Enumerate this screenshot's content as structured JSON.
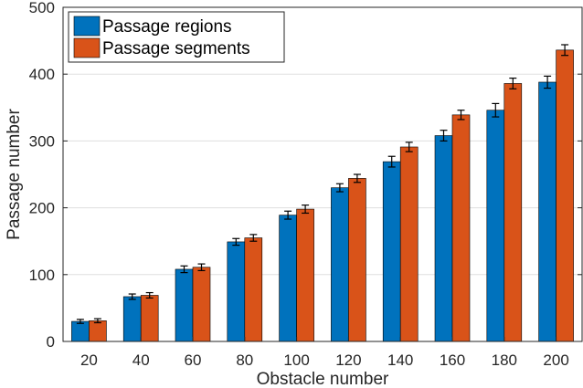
{
  "chart_data": {
    "type": "bar",
    "xlabel": "Obstacle number",
    "ylabel": "Passage number",
    "categories": [
      "20",
      "40",
      "60",
      "80",
      "100",
      "120",
      "140",
      "160",
      "180",
      "200"
    ],
    "ylim": [
      0,
      500
    ],
    "yticks": [
      "0",
      "100",
      "200",
      "300",
      "400",
      "500"
    ],
    "grid": true,
    "legend_position": "top-left",
    "series": [
      {
        "name": "Passage regions",
        "color": "#0072BD",
        "values": [
          30,
          67,
          108,
          149,
          189,
          230,
          269,
          308,
          346,
          388
        ],
        "errors": [
          3,
          4,
          5,
          5,
          6,
          6,
          8,
          8,
          10,
          9
        ]
      },
      {
        "name": "Passage segments",
        "color": "#D95319",
        "values": [
          31,
          69,
          111,
          155,
          198,
          244,
          291,
          339,
          386,
          436
        ],
        "errors": [
          3,
          4,
          5,
          5,
          6,
          6,
          7,
          7,
          8,
          8
        ]
      }
    ]
  }
}
